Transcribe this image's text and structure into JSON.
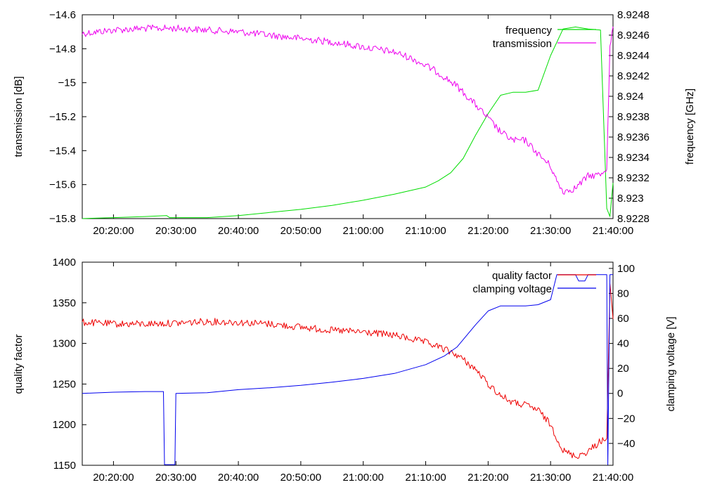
{
  "chart_data": [
    {
      "type": "line",
      "xlabel": "",
      "y1label": "transmission [dB]",
      "y2label": "frequency [GHz]",
      "x_range": [
        "20:15:00",
        "21:40:00"
      ],
      "x_ticks": [
        "20:20:00",
        "20:30:00",
        "20:40:00",
        "20:50:00",
        "21:00:00",
        "21:10:00",
        "21:20:00",
        "21:30:00",
        "21:40:00"
      ],
      "y1_range": [
        -15.8,
        -14.6
      ],
      "y1_ticks": [
        "-14.6",
        "-14.8",
        "-15",
        "-15.2",
        "-15.4",
        "-15.6",
        "-15.8"
      ],
      "y2_range": [
        8.9228,
        8.9248
      ],
      "y2_ticks": [
        "8.9248",
        "8.9246",
        "8.9244",
        "8.9242",
        "8.924",
        "8.9238",
        "8.9236",
        "8.9234",
        "8.9232",
        "8.923",
        "8.9228"
      ],
      "legend_position": "top-right",
      "grid": false,
      "series": [
        {
          "name": "frequency",
          "axis": "right",
          "color": "#00dd00",
          "x": [
            "20:15:00",
            "20:20:00",
            "20:25:00",
            "20:28:30",
            "20:29:00",
            "20:30:00",
            "20:35:00",
            "20:40:00",
            "20:45:00",
            "20:50:00",
            "20:55:00",
            "21:00:00",
            "21:05:00",
            "21:10:00",
            "21:12:00",
            "21:14:00",
            "21:16:00",
            "21:18:00",
            "21:20:00",
            "21:22:00",
            "21:24:00",
            "21:26:00",
            "21:28:00",
            "21:30:00",
            "21:32:00",
            "21:34:00",
            "21:36:00",
            "21:38:00",
            "21:39:00",
            "21:39:30",
            "21:40:00"
          ],
          "values": [
            8.9228,
            8.92281,
            8.92282,
            8.92283,
            8.92281,
            8.92281,
            8.92281,
            8.92283,
            8.92286,
            8.92289,
            8.92293,
            8.92298,
            8.92304,
            8.92311,
            8.92317,
            8.92325,
            8.92339,
            8.92362,
            8.92383,
            8.92401,
            8.92404,
            8.92404,
            8.92406,
            8.9244,
            8.92466,
            8.92468,
            8.92466,
            8.92465,
            8.9229,
            8.92282,
            8.92315
          ]
        },
        {
          "name": "transmission",
          "axis": "left",
          "color": "#ee00ee",
          "x": [
            "20:15:00",
            "20:20:00",
            "20:25:00",
            "20:30:00",
            "20:35:00",
            "20:40:00",
            "20:45:00",
            "20:50:00",
            "20:55:00",
            "21:00:00",
            "21:05:00",
            "21:08:00",
            "21:12:00",
            "21:15:00",
            "21:18:00",
            "21:20:00",
            "21:22:00",
            "21:24:00",
            "21:26:00",
            "21:28:00",
            "21:30:00",
            "21:31:00",
            "21:32:00",
            "21:34:00",
            "21:36:00",
            "21:38:00",
            "21:39:00",
            "21:39:30",
            "21:40:00"
          ],
          "values": [
            -14.71,
            -14.69,
            -14.68,
            -14.68,
            -14.69,
            -14.7,
            -14.72,
            -14.74,
            -14.76,
            -14.79,
            -14.82,
            -14.86,
            -14.94,
            -15.02,
            -15.13,
            -15.21,
            -15.29,
            -15.34,
            -15.34,
            -15.42,
            -15.49,
            -15.58,
            -15.64,
            -15.62,
            -15.55,
            -15.54,
            -15.5,
            -14.8,
            -14.67
          ]
        }
      ]
    },
    {
      "type": "line",
      "xlabel": "",
      "y1label": "quality factor",
      "y2label": "clamping voltage [V]",
      "x_range": [
        "20:15:00",
        "21:40:00"
      ],
      "x_ticks": [
        "20:20:00",
        "20:30:00",
        "20:40:00",
        "20:50:00",
        "21:00:00",
        "21:10:00",
        "21:20:00",
        "21:30:00",
        "21:40:00"
      ],
      "y1_range": [
        1150,
        1400
      ],
      "y1_ticks": [
        "1400",
        "1350",
        "1300",
        "1250",
        "1200",
        "1150"
      ],
      "y2_range": [
        -57.5,
        105
      ],
      "y2_ticks": [
        "100",
        "80",
        "60",
        "40",
        "20",
        "0",
        "-20",
        "-40"
      ],
      "legend_position": "top-right",
      "grid": false,
      "series": [
        {
          "name": "quality factor",
          "axis": "left",
          "color": "#ee0000",
          "x": [
            "20:15:00",
            "20:20:00",
            "20:25:00",
            "20:30:00",
            "20:35:00",
            "20:40:00",
            "20:45:00",
            "20:50:00",
            "20:55:00",
            "21:00:00",
            "21:05:00",
            "21:08:00",
            "21:10:00",
            "21:12:00",
            "21:15:00",
            "21:18:00",
            "21:20:00",
            "21:22:00",
            "21:24:00",
            "21:26:00",
            "21:28:00",
            "21:30:00",
            "21:32:00",
            "21:34:00",
            "21:36:00",
            "21:38:00",
            "21:39:00",
            "21:39:30",
            "21:40:00"
          ],
          "values": [
            1326,
            1324,
            1324,
            1325,
            1327,
            1326,
            1324,
            1320,
            1316,
            1314,
            1310,
            1305,
            1301,
            1296,
            1286,
            1268,
            1250,
            1236,
            1227,
            1224,
            1218,
            1200,
            1168,
            1161,
            1167,
            1180,
            1182,
            1370,
            1330
          ]
        },
        {
          "name": "clamping voltage",
          "axis": "right",
          "color": "#0000ee",
          "x": [
            "20:15:00",
            "20:20:00",
            "20:25:00",
            "20:28:00",
            "20:28:10",
            "20:29:50",
            "20:30:00",
            "20:35:00",
            "20:40:00",
            "20:45:00",
            "20:50:00",
            "20:55:00",
            "21:00:00",
            "21:05:00",
            "21:10:00",
            "21:13:00",
            "21:15:00",
            "21:18:00",
            "21:20:00",
            "21:22:00",
            "21:26:00",
            "21:28:00",
            "21:30:00",
            "21:31:00",
            "21:34:00",
            "21:34:30",
            "21:35:30",
            "21:36:00",
            "21:39:00",
            "21:39:10",
            "21:39:30",
            "21:40:00"
          ],
          "values": [
            0,
            1,
            1.5,
            1.5,
            -57,
            -57,
            0,
            0.5,
            3,
            4.5,
            6.5,
            9,
            12,
            16,
            23,
            30,
            37,
            55,
            66,
            70,
            70,
            71,
            75,
            95,
            95,
            90,
            90,
            95,
            95,
            -57,
            95,
            95
          ]
        }
      ]
    }
  ]
}
